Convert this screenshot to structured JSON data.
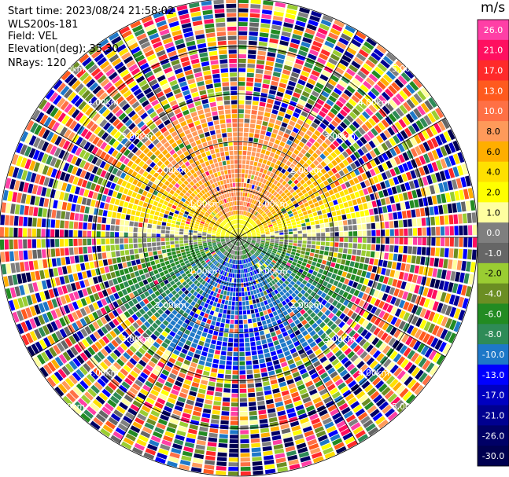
{
  "header": {
    "start_time": "Start time: 2023/08/24 21:58:02",
    "instrument": "WLS200s-181",
    "field": "Field: VEL",
    "elevation": "Elevation(deg): 35.30",
    "nrays": "NRays: 120"
  },
  "colorbar": {
    "unit": "m/s",
    "entries": [
      {
        "label": "26.0",
        "color": "#ff3fa6"
      },
      {
        "label": "21.0",
        "color": "#ff0f60"
      },
      {
        "label": "17.0",
        "color": "#ff2a2a"
      },
      {
        "label": "13.0",
        "color": "#ff5a1e"
      },
      {
        "label": "10.0",
        "color": "#ff7045"
      },
      {
        "label": "8.0",
        "color": "#ff9a5a"
      },
      {
        "label": "6.0",
        "color": "#ffae00"
      },
      {
        "label": "4.0",
        "color": "#ffe000"
      },
      {
        "label": "2.0",
        "color": "#ffff00"
      },
      {
        "label": "1.0",
        "color": "#ffffa0"
      },
      {
        "label": "0.0",
        "color": "#7f7f7f"
      },
      {
        "label": "-1.0",
        "color": "#666666"
      },
      {
        "label": "-2.0",
        "color": "#9acd32"
      },
      {
        "label": "-4.0",
        "color": "#6b8e23"
      },
      {
        "label": "-6.0",
        "color": "#228b22"
      },
      {
        "label": "-8.0",
        "color": "#2e8b57"
      },
      {
        "label": "-10.0",
        "color": "#1e78c8"
      },
      {
        "label": "-13.0",
        "color": "#0000ff"
      },
      {
        "label": "-17.0",
        "color": "#0000c0"
      },
      {
        "label": "-21.0",
        "color": "#000090"
      },
      {
        "label": "-26.0",
        "color": "#000066"
      },
      {
        "label": "-30.0",
        "color": "#000050"
      }
    ]
  },
  "chart_data": {
    "type": "ppi_radar",
    "field": "VEL",
    "units": "m/s",
    "elevation_deg": 35.3,
    "nrays": 120,
    "range_rings_km": [
      1.0,
      2.0,
      3.0,
      4.0,
      5.0
    ],
    "ring_label": "km",
    "range_ring_labels": [
      "1.00km",
      "2.00km",
      "3.00km",
      "4.00km",
      "5.00km"
    ],
    "max_range_km": 5.0,
    "spoke_angles_deg": [
      0,
      30,
      60,
      90,
      120,
      150,
      180,
      210,
      240,
      270,
      300,
      330
    ],
    "pattern": {
      "north_half_near_range": "positive velocities 4 to 10 m/s (orange/yellow)",
      "south_half_near_range": "negative velocities -4 to -10 m/s (green/blue)",
      "beyond_about_3km": "noisy, all color classes"
    }
  }
}
